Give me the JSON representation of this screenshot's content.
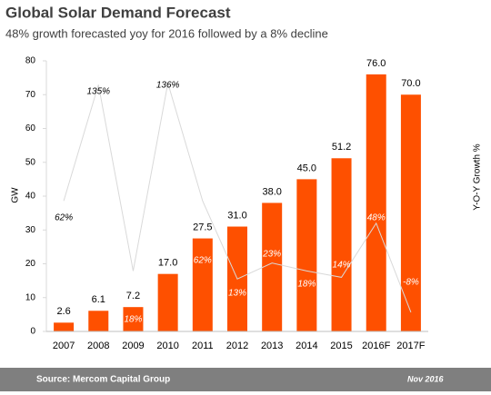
{
  "chart_data": {
    "type": "bar",
    "title": "Global Solar Demand Forecast",
    "subtitle": "48% growth forecasted yoy for 2016  followed by a 8% decline",
    "y_label": "GW",
    "y2_label": "Y-O-Y Growth %",
    "source": "Source: Mercom Capital Group",
    "date": "Nov 2016",
    "categories": [
      "2007",
      "2008",
      "2009",
      "2010",
      "2011",
      "2012",
      "2013",
      "2014",
      "2015",
      "2016F",
      "2017F"
    ],
    "ylim": [
      0,
      80
    ],
    "yticks": [
      0,
      10,
      20,
      30,
      40,
      50,
      60,
      70,
      80
    ],
    "y2lim": [
      -20,
      150
    ],
    "series": [
      {
        "name": "GW",
        "type": "bar",
        "color": "#fe5000",
        "values": [
          2.6,
          6.1,
          7.2,
          17.0,
          27.5,
          31.0,
          38.0,
          45.0,
          51.2,
          76.0,
          70.0
        ],
        "value_labels": [
          "2.6",
          "6.1",
          "7.2",
          "17.0",
          "27.5",
          "31.0",
          "38.0",
          "45.0",
          "51.2",
          "76.0",
          "70.0"
        ]
      },
      {
        "name": "Y-O-Y Growth %",
        "type": "line",
        "axis": "y2",
        "color": "#d9d9d9",
        "values": [
          62,
          135,
          18,
          136,
          62,
          13,
          23,
          18,
          14,
          48,
          -8
        ],
        "value_labels": [
          "62%",
          "135%",
          "18%",
          "136%",
          "62%",
          "13%",
          "23%",
          "18%",
          "14%",
          "48%",
          "-8%"
        ]
      }
    ]
  }
}
